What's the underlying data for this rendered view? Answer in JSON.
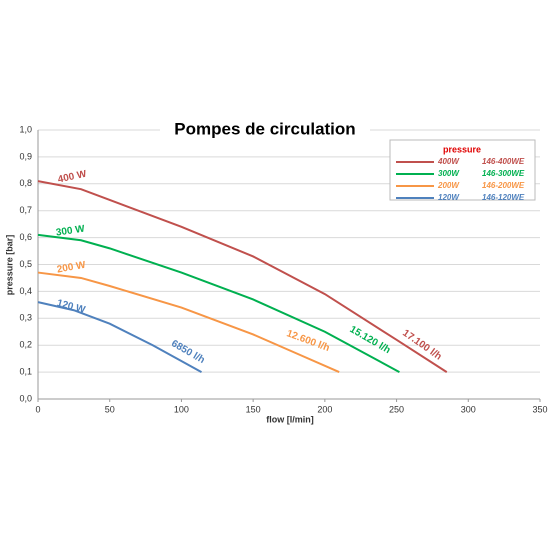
{
  "chart_data": {
    "type": "line",
    "title": "Pompes de circulation",
    "x_label": "flow [l/min]",
    "y_label": "pressure [bar]",
    "legend_title": "pressure",
    "xlim": [
      0,
      350
    ],
    "xticks": [
      0,
      50,
      100,
      150,
      200,
      250,
      300,
      350
    ],
    "ylim": [
      0,
      1.0
    ],
    "yticks": [
      {
        "value": 0,
        "label": "0,0"
      },
      {
        "value": 0.1,
        "label": "0,1"
      },
      {
        "value": 0.2,
        "label": "0,2"
      },
      {
        "value": 0.3,
        "label": "0,3"
      },
      {
        "value": 0.4,
        "label": "0,4"
      },
      {
        "value": 0.5,
        "label": "0,5"
      },
      {
        "value": 0.6,
        "label": "0,6"
      },
      {
        "value": 0.7,
        "label": "0,7"
      },
      {
        "value": 0.8,
        "label": "0,8"
      },
      {
        "value": 0.9,
        "label": "0,9"
      },
      {
        "value": 1.0,
        "label": "1,0"
      }
    ],
    "grid": true,
    "legend_position": "upper right",
    "series": [
      {
        "name": "400W",
        "model": "146-400WE",
        "label": "400 W",
        "end_label": "17.100 l/h",
        "color": "#c0504d",
        "x": [
          0,
          30,
          50,
          100,
          150,
          200,
          250,
          285
        ],
        "values": [
          0.81,
          0.78,
          0.74,
          0.64,
          0.53,
          0.39,
          0.22,
          0.1
        ]
      },
      {
        "name": "300W",
        "model": "146-300WE",
        "label": "300 W",
        "end_label": "15.120 l/h",
        "color": "#00b050",
        "x": [
          0,
          30,
          50,
          100,
          150,
          200,
          252
        ],
        "values": [
          0.61,
          0.59,
          0.56,
          0.47,
          0.37,
          0.25,
          0.1
        ]
      },
      {
        "name": "200W",
        "model": "146-200WE",
        "label": "200 W",
        "end_label": "12.600 l/h",
        "color": "#f79646",
        "x": [
          0,
          30,
          50,
          100,
          150,
          180,
          210
        ],
        "values": [
          0.47,
          0.45,
          0.42,
          0.34,
          0.24,
          0.17,
          0.1
        ]
      },
      {
        "name": "120W",
        "model": "146-120WE",
        "label": "120 W",
        "end_label": "6850 l/h",
        "color": "#4f81bd",
        "x": [
          0,
          25,
          50,
          80,
          114
        ],
        "values": [
          0.36,
          0.33,
          0.28,
          0.2,
          0.1
        ]
      }
    ]
  }
}
